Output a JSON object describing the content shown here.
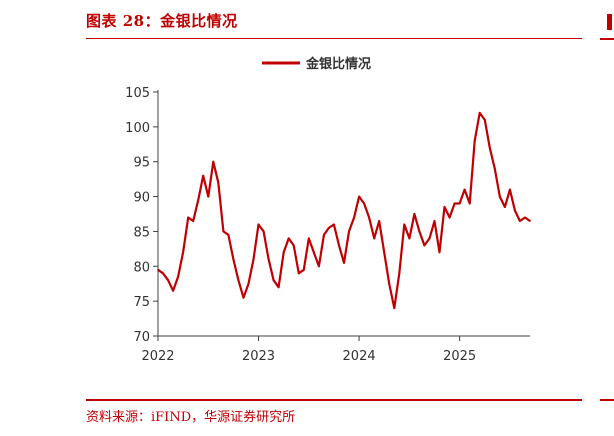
{
  "figure": {
    "title": "图表 28：金银比情况",
    "source": "资料来源：iFIND，华源证券研究所"
  },
  "colors": {
    "accent": "#c00000",
    "series": "#c00000",
    "axis": "#404040",
    "text": "#333333"
  },
  "chart_data": {
    "type": "line",
    "title": "",
    "xlabel": "",
    "ylabel": "",
    "grid": false,
    "legend_position": "top-center",
    "ylim": [
      70,
      105
    ],
    "yticks": [
      "70",
      "75",
      "80",
      "85",
      "90",
      "95",
      "100",
      "105"
    ],
    "xlim": [
      2022.0,
      2025.7
    ],
    "xticks": [
      "2022",
      "2023",
      "2024",
      "2025"
    ],
    "series": [
      {
        "name": "金银比情况",
        "x": [
          2022.0,
          2022.05,
          2022.1,
          2022.15,
          2022.2,
          2022.25,
          2022.3,
          2022.35,
          2022.4,
          2022.45,
          2022.5,
          2022.55,
          2022.6,
          2022.65,
          2022.7,
          2022.75,
          2022.8,
          2022.85,
          2022.9,
          2022.95,
          2023.0,
          2023.05,
          2023.1,
          2023.15,
          2023.2,
          2023.25,
          2023.3,
          2023.35,
          2023.4,
          2023.45,
          2023.5,
          2023.55,
          2023.6,
          2023.65,
          2023.7,
          2023.75,
          2023.8,
          2023.85,
          2023.9,
          2023.95,
          2024.0,
          2024.05,
          2024.1,
          2024.15,
          2024.2,
          2024.25,
          2024.3,
          2024.35,
          2024.4,
          2024.45,
          2024.5,
          2024.55,
          2024.6,
          2024.65,
          2024.7,
          2024.75,
          2024.8,
          2024.85,
          2024.9,
          2024.95,
          2025.0,
          2025.05,
          2025.1,
          2025.15,
          2025.2,
          2025.25,
          2025.3,
          2025.35,
          2025.4,
          2025.45,
          2025.5,
          2025.55,
          2025.6,
          2025.65,
          2025.7
        ],
        "values": [
          79.5,
          79.0,
          78.0,
          76.5,
          78.5,
          82.0,
          87.0,
          86.5,
          89.5,
          93.0,
          90.0,
          95.0,
          92.0,
          85.0,
          84.5,
          81.0,
          78.0,
          75.5,
          77.5,
          81.0,
          86.0,
          85.0,
          81.0,
          78.0,
          77.0,
          82.0,
          84.0,
          83.0,
          79.0,
          79.5,
          84.0,
          82.0,
          80.0,
          84.5,
          85.5,
          86.0,
          83.0,
          80.5,
          85.0,
          87.0,
          90.0,
          89.0,
          87.0,
          84.0,
          86.5,
          82.0,
          77.5,
          74.0,
          79.0,
          86.0,
          84.0,
          87.5,
          85.0,
          83.0,
          84.0,
          86.5,
          82.0,
          88.5,
          87.0,
          89.0,
          89.0,
          91.0,
          89.0,
          98.0,
          102.0,
          101.0,
          97.0,
          94.0,
          90.0,
          88.5,
          91.0,
          88.0,
          86.5,
          87.0,
          86.5
        ]
      }
    ]
  }
}
